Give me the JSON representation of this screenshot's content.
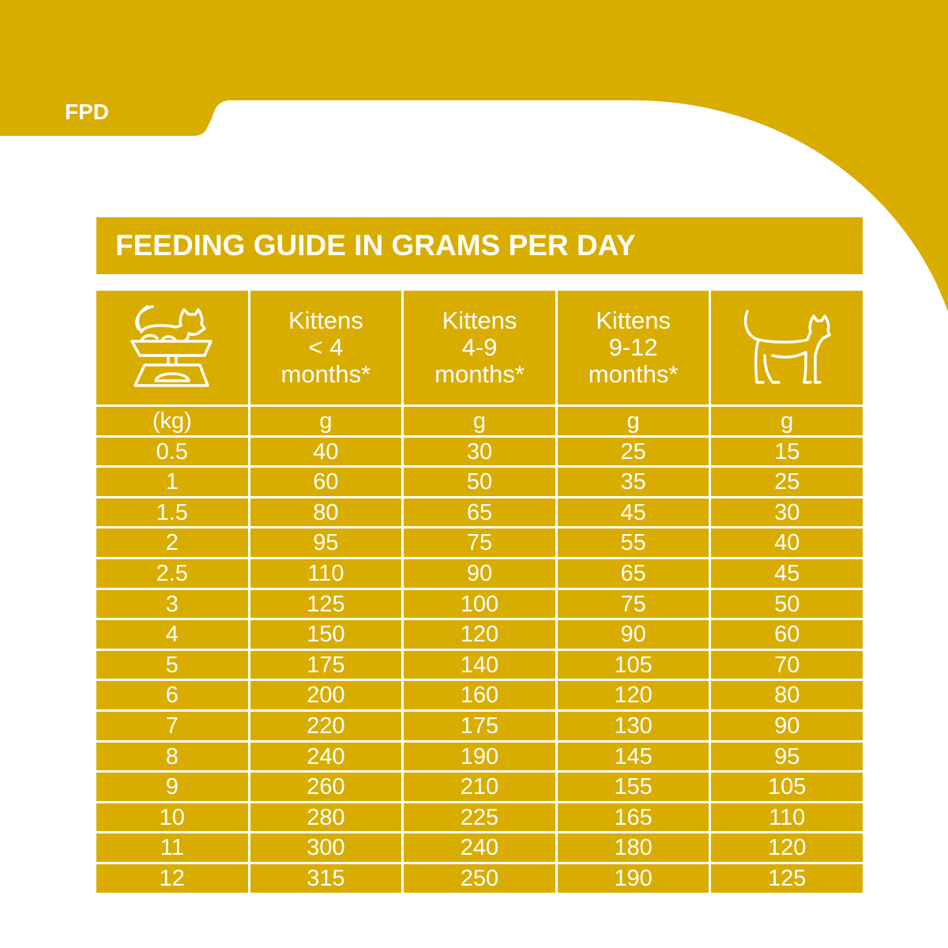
{
  "brand": "FPD",
  "title": "FEEDING GUIDE IN GRAMS PER DAY",
  "colors": {
    "accent": "#D9AC00",
    "text": "#FFFFFF"
  },
  "header": {
    "weight_icon": "cat-on-scale-icon",
    "columns": [
      "Kittens\n< 4\nmonths*",
      "Kittens\n4-9\nmonths*",
      "Kittens\n9-12\nmonths*"
    ],
    "adult_icon": "adult-cat-icon"
  },
  "units": [
    "(kg)",
    "g",
    "g",
    "g",
    "g"
  ],
  "rows": [
    [
      "0.5",
      "40",
      "30",
      "25",
      "15"
    ],
    [
      "1",
      "60",
      "50",
      "35",
      "25"
    ],
    [
      "1.5",
      "80",
      "65",
      "45",
      "30"
    ],
    [
      "2",
      "95",
      "75",
      "55",
      "40"
    ],
    [
      "2.5",
      "110",
      "90",
      "65",
      "45"
    ],
    [
      "3",
      "125",
      "100",
      "75",
      "50"
    ],
    [
      "4",
      "150",
      "120",
      "90",
      "60"
    ],
    [
      "5",
      "175",
      "140",
      "105",
      "70"
    ],
    [
      "6",
      "200",
      "160",
      "120",
      "80"
    ],
    [
      "7",
      "220",
      "175",
      "130",
      "90"
    ],
    [
      "8",
      "240",
      "190",
      "145",
      "95"
    ],
    [
      "9",
      "260",
      "210",
      "155",
      "105"
    ],
    [
      "10",
      "280",
      "225",
      "165",
      "110"
    ],
    [
      "11",
      "300",
      "240",
      "180",
      "120"
    ],
    [
      "12",
      "315",
      "250",
      "190",
      "125"
    ]
  ]
}
